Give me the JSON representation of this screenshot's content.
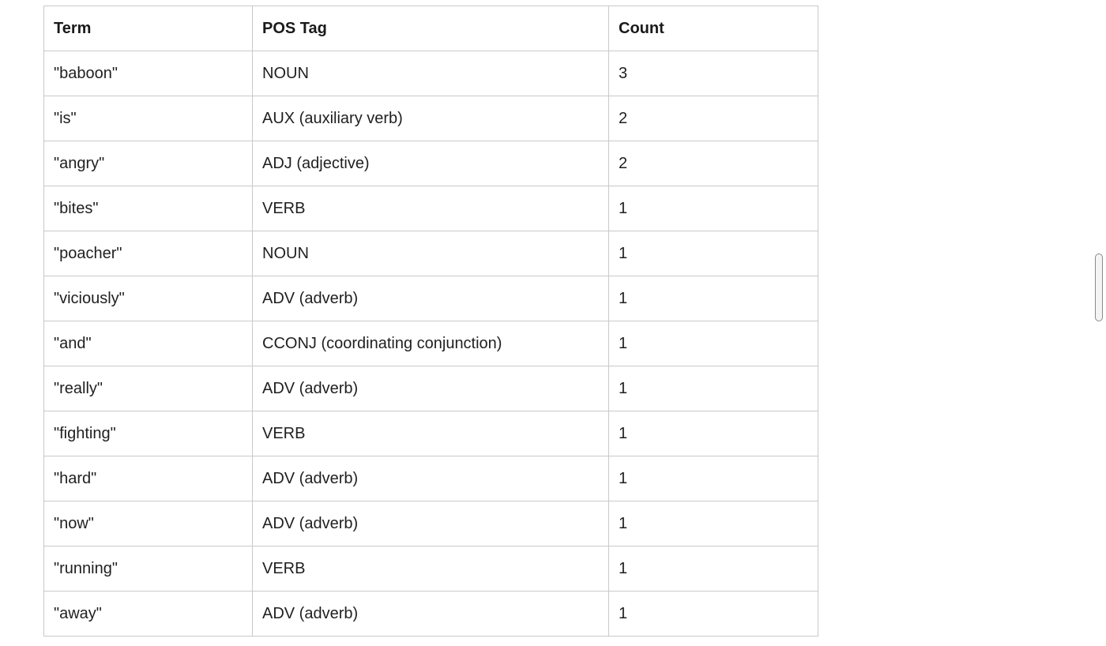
{
  "table": {
    "headers": [
      "Term",
      "POS Tag",
      "Count"
    ],
    "rows": [
      {
        "term": "\"baboon\"",
        "pos": "NOUN",
        "count": "3"
      },
      {
        "term": "\"is\"",
        "pos": "AUX (auxiliary verb)",
        "count": "2"
      },
      {
        "term": "\"angry\"",
        "pos": "ADJ (adjective)",
        "count": "2"
      },
      {
        "term": "\"bites\"",
        "pos": "VERB",
        "count": "1"
      },
      {
        "term": "\"poacher\"",
        "pos": "NOUN",
        "count": "1"
      },
      {
        "term": "\"viciously\"",
        "pos": "ADV (adverb)",
        "count": "1"
      },
      {
        "term": "\"and\"",
        "pos": "CCONJ (coordinating conjunction)",
        "count": "1"
      },
      {
        "term": "\"really\"",
        "pos": "ADV (adverb)",
        "count": "1"
      },
      {
        "term": "\"fighting\"",
        "pos": "VERB",
        "count": "1"
      },
      {
        "term": "\"hard\"",
        "pos": "ADV (adverb)",
        "count": "1"
      },
      {
        "term": "\"now\"",
        "pos": "ADV (adverb)",
        "count": "1"
      },
      {
        "term": "\"running\"",
        "pos": "VERB",
        "count": "1"
      },
      {
        "term": "\"away\"",
        "pos": "ADV (adverb)",
        "count": "1"
      }
    ]
  },
  "colors": {
    "border": "#c9c9c9",
    "text": "#1f1f1f",
    "background": "#ffffff"
  }
}
